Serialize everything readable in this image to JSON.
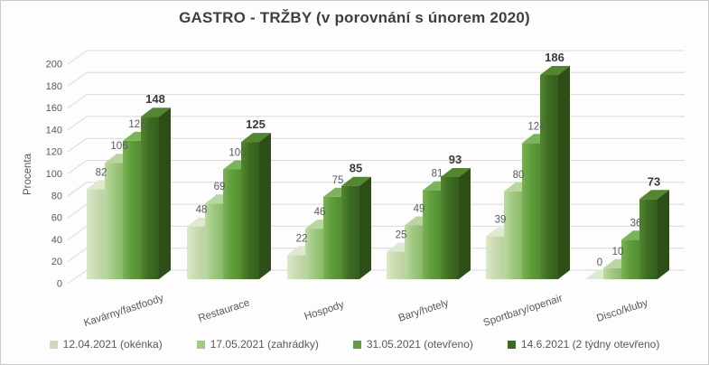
{
  "chart_data": {
    "type": "bar",
    "style": "3d-clustered",
    "title": "GASTRO - TRŽBY (v porovnání s únorem 2020)",
    "ylabel": "Procenta",
    "categories": [
      "Kavárny/fastfoody",
      "Restaurace",
      "Hospody",
      "Bary/hotely",
      "Sportbary/openair",
      "Disco/kluby"
    ],
    "series": [
      {
        "name": "12.04.2021 (okénka)",
        "values": [
          82,
          48,
          22,
          25,
          39,
          0
        ],
        "emphasis": false,
        "colors": {
          "front": "#cbdcb3",
          "front_hl": "#dce8ca",
          "front_dk": "#bcd0a2",
          "top": "#dfe9d1",
          "side": "#a9be92"
        }
      },
      {
        "name": "17.05.2021 (zahrádky)",
        "values": [
          106,
          69,
          46,
          49,
          80,
          10
        ],
        "emphasis": false,
        "colors": {
          "front": "#a0c981",
          "front_hl": "#bcd9a4",
          "front_dk": "#8db96c",
          "top": "#b9d6a0",
          "side": "#7fa961"
        }
      },
      {
        "name": "31.05.2021 (otevřeno)",
        "values": [
          126,
          100,
          75,
          81,
          124,
          36
        ],
        "emphasis": false,
        "colors": {
          "front": "#5f9e3b",
          "front_hl": "#7bb257",
          "front_dk": "#529030",
          "top": "#7cb45b",
          "side": "#497f2a"
        }
      },
      {
        "name": "14.6.2021 (2 týdny otevřeno)",
        "values": [
          148,
          125,
          85,
          93,
          186,
          73
        ],
        "emphasis": true,
        "colors": {
          "front": "#3e6b22",
          "front_hl": "#538631",
          "front_dk": "#345e1b",
          "top": "#54852f",
          "side": "#2d4e16"
        }
      }
    ],
    "ylim": [
      0,
      200
    ],
    "ytick_step": 20,
    "grid": true,
    "legend_position": "bottom",
    "grid_color": "#d9d9d9",
    "text_color": "#595959",
    "title_color": "#3f3f3f"
  }
}
